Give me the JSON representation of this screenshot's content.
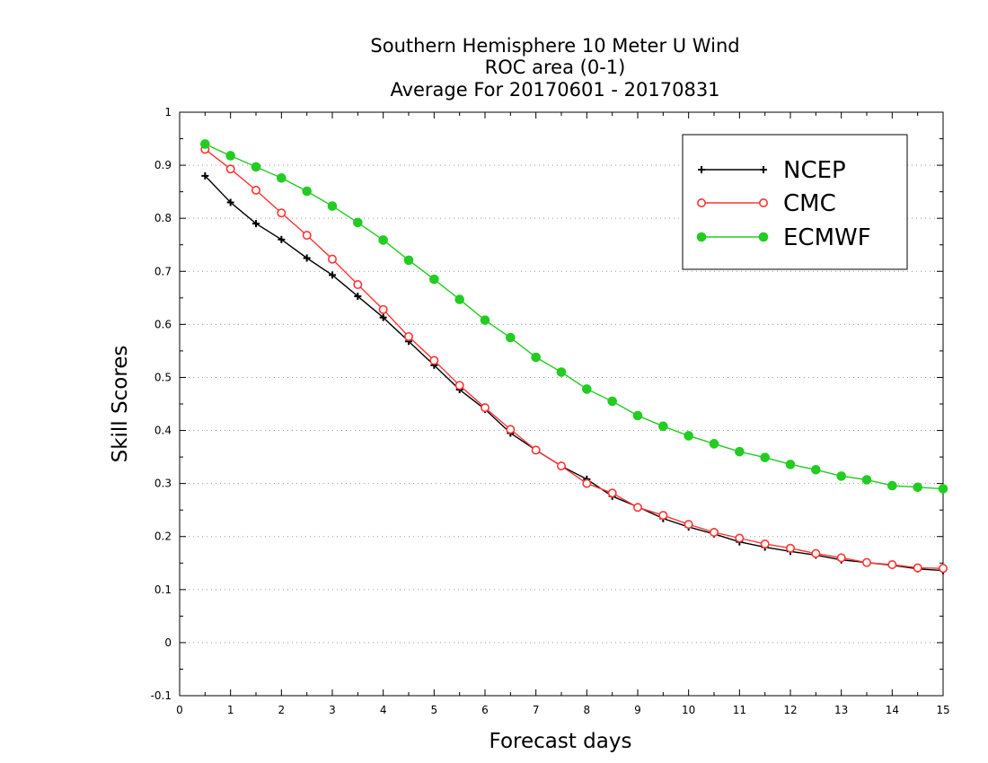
{
  "chart_data": {
    "type": "line",
    "title": [
      "Southern Hemisphere 10 Meter U Wind",
      "ROC area (0-1)",
      "Average For 20170601 - 20170831"
    ],
    "xlabel": "Forecast days",
    "ylabel": "Skill Scores",
    "xlim": [
      0,
      15
    ],
    "ylim": [
      -0.1,
      1
    ],
    "xticks": [
      0,
      1,
      2,
      3,
      4,
      5,
      6,
      7,
      8,
      9,
      10,
      11,
      12,
      13,
      14,
      15
    ],
    "yticks": [
      -0.1,
      0,
      0.1,
      0.2,
      0.3,
      0.4,
      0.5,
      0.6,
      0.7,
      0.8,
      0.9,
      1
    ],
    "ytick_labels": [
      "-0.1",
      "0",
      "0.1",
      "0.2",
      "0.3",
      "0.4",
      "0.5",
      "0.6",
      "0.7",
      "0.8",
      "0.9",
      "1"
    ],
    "grid": "horizontal dotted",
    "legend_position": "top-right",
    "x": [
      0.5,
      1,
      1.5,
      2,
      2.5,
      3,
      3.5,
      4,
      4.5,
      5,
      5.5,
      6,
      6.5,
      7,
      7.5,
      8,
      8.5,
      9,
      9.5,
      10,
      10.5,
      11,
      11.5,
      12,
      12.5,
      13,
      13.5,
      14,
      14.5,
      15
    ],
    "series": [
      {
        "name": "NCEP",
        "color": "#000000",
        "marker": "plus",
        "values": [
          0.88,
          0.83,
          0.79,
          0.76,
          0.725,
          0.693,
          0.653,
          0.613,
          0.568,
          0.523,
          0.477,
          0.44,
          0.395,
          0.363,
          0.333,
          0.308,
          0.276,
          0.256,
          0.234,
          0.218,
          0.205,
          0.19,
          0.18,
          0.172,
          0.165,
          0.156,
          0.151,
          0.146,
          0.139,
          0.136
        ]
      },
      {
        "name": "CMC",
        "color": "#ff3333",
        "marker": "open-circle",
        "values": [
          0.93,
          0.893,
          0.853,
          0.81,
          0.768,
          0.723,
          0.675,
          0.628,
          0.577,
          0.532,
          0.485,
          0.443,
          0.402,
          0.363,
          0.333,
          0.3,
          0.282,
          0.255,
          0.24,
          0.223,
          0.208,
          0.197,
          0.186,
          0.178,
          0.168,
          0.16,
          0.151,
          0.147,
          0.141,
          0.14
        ]
      },
      {
        "name": "ECMWF",
        "color": "#22cc22",
        "marker": "filled-circle",
        "values": [
          0.94,
          0.918,
          0.897,
          0.876,
          0.851,
          0.823,
          0.792,
          0.759,
          0.721,
          0.685,
          0.647,
          0.608,
          0.575,
          0.538,
          0.51,
          0.478,
          0.455,
          0.428,
          0.408,
          0.39,
          0.375,
          0.36,
          0.349,
          0.336,
          0.326,
          0.314,
          0.307,
          0.296,
          0.293,
          0.29
        ]
      }
    ]
  }
}
